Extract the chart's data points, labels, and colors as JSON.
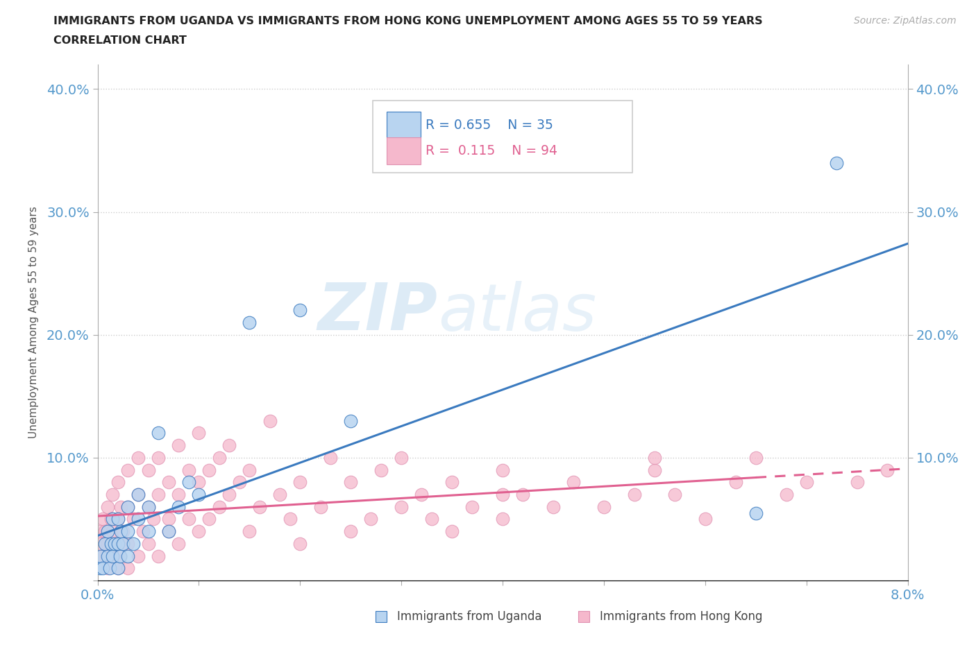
{
  "title_line1": "IMMIGRANTS FROM UGANDA VS IMMIGRANTS FROM HONG KONG UNEMPLOYMENT AMONG AGES 55 TO 59 YEARS",
  "title_line2": "CORRELATION CHART",
  "source": "Source: ZipAtlas.com",
  "ylabel": "Unemployment Among Ages 55 to 59 years",
  "xlim": [
    0.0,
    0.08
  ],
  "ylim": [
    0.0,
    0.42
  ],
  "color_uganda": "#b8d4f0",
  "color_hongkong": "#f5b8cc",
  "color_uganda_line": "#3a7abf",
  "color_hongkong_line": "#e06090",
  "watermark_zip": "ZIP",
  "watermark_atlas": "atlas",
  "uganda_x": [
    0.0002,
    0.0003,
    0.0005,
    0.0007,
    0.001,
    0.001,
    0.0012,
    0.0013,
    0.0015,
    0.0015,
    0.0017,
    0.002,
    0.002,
    0.002,
    0.0022,
    0.0023,
    0.0025,
    0.003,
    0.003,
    0.003,
    0.0035,
    0.004,
    0.004,
    0.005,
    0.005,
    0.006,
    0.007,
    0.008,
    0.009,
    0.01,
    0.015,
    0.02,
    0.025,
    0.065,
    0.073
  ],
  "uganda_y": [
    0.01,
    0.02,
    0.01,
    0.03,
    0.02,
    0.04,
    0.01,
    0.03,
    0.02,
    0.05,
    0.03,
    0.01,
    0.03,
    0.05,
    0.02,
    0.04,
    0.03,
    0.02,
    0.04,
    0.06,
    0.03,
    0.05,
    0.07,
    0.04,
    0.06,
    0.12,
    0.04,
    0.06,
    0.08,
    0.07,
    0.21,
    0.22,
    0.13,
    0.055,
    0.34
  ],
  "hongkong_x": [
    0.0001,
    0.0002,
    0.0003,
    0.0005,
    0.0005,
    0.0007,
    0.001,
    0.001,
    0.001,
    0.0012,
    0.0013,
    0.0015,
    0.0015,
    0.0017,
    0.002,
    0.002,
    0.002,
    0.002,
    0.0022,
    0.0023,
    0.0025,
    0.003,
    0.003,
    0.003,
    0.003,
    0.0035,
    0.004,
    0.004,
    0.004,
    0.0045,
    0.005,
    0.005,
    0.005,
    0.0055,
    0.006,
    0.006,
    0.006,
    0.007,
    0.007,
    0.007,
    0.008,
    0.008,
    0.008,
    0.009,
    0.009,
    0.01,
    0.01,
    0.01,
    0.011,
    0.011,
    0.012,
    0.012,
    0.013,
    0.013,
    0.014,
    0.015,
    0.015,
    0.016,
    0.017,
    0.018,
    0.019,
    0.02,
    0.02,
    0.022,
    0.023,
    0.025,
    0.025,
    0.027,
    0.028,
    0.03,
    0.03,
    0.032,
    0.033,
    0.035,
    0.035,
    0.037,
    0.04,
    0.04,
    0.042,
    0.045,
    0.047,
    0.05,
    0.053,
    0.055,
    0.057,
    0.06,
    0.063,
    0.065,
    0.068,
    0.07,
    0.055,
    0.04,
    0.075,
    0.078
  ],
  "hongkong_y": [
    0.02,
    0.04,
    0.03,
    0.02,
    0.05,
    0.04,
    0.01,
    0.03,
    0.06,
    0.02,
    0.05,
    0.04,
    0.07,
    0.03,
    0.01,
    0.03,
    0.05,
    0.08,
    0.02,
    0.06,
    0.04,
    0.01,
    0.03,
    0.06,
    0.09,
    0.05,
    0.02,
    0.07,
    0.1,
    0.04,
    0.03,
    0.06,
    0.09,
    0.05,
    0.02,
    0.07,
    0.1,
    0.04,
    0.08,
    0.05,
    0.03,
    0.07,
    0.11,
    0.05,
    0.09,
    0.04,
    0.08,
    0.12,
    0.05,
    0.09,
    0.06,
    0.1,
    0.07,
    0.11,
    0.08,
    0.04,
    0.09,
    0.06,
    0.13,
    0.07,
    0.05,
    0.03,
    0.08,
    0.06,
    0.1,
    0.04,
    0.08,
    0.05,
    0.09,
    0.06,
    0.1,
    0.07,
    0.05,
    0.04,
    0.08,
    0.06,
    0.05,
    0.09,
    0.07,
    0.06,
    0.08,
    0.06,
    0.07,
    0.09,
    0.07,
    0.05,
    0.08,
    0.1,
    0.07,
    0.08,
    0.1,
    0.07,
    0.08,
    0.09
  ]
}
